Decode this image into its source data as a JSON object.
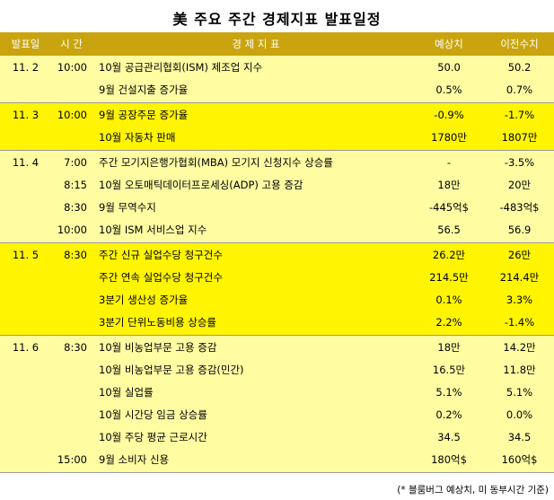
{
  "title": "美 주요 주간 경제지표 발표일정",
  "header": {
    "date": "발표일",
    "time": "시 간",
    "indicator": "경 제 지 표",
    "expected": "예상치",
    "previous": "이전수치"
  },
  "groups": [
    {
      "date": "11. 2",
      "rows": [
        {
          "time": "10:00",
          "indicator": "10월 공급관리협회(ISM) 제조업 지수",
          "expected": "50.0",
          "previous": "50.2"
        },
        {
          "time": "",
          "indicator": "9월 건설지출 증가율",
          "expected": "0.5%",
          "previous": "0.7%"
        }
      ]
    },
    {
      "date": "11. 3",
      "rows": [
        {
          "time": "10:00",
          "indicator": "9월 공장주문 증가율",
          "expected": "-0.9%",
          "previous": "-1.7%"
        },
        {
          "time": "",
          "indicator": "10월 자동차 판매",
          "expected": "1780만",
          "previous": "1807만"
        }
      ]
    },
    {
      "date": "11. 4",
      "rows": [
        {
          "time": "7:00",
          "indicator": "주간 모기지은행가협회(MBA) 모기지 신청지수 상승률",
          "expected": "-",
          "previous": "-3.5%"
        },
        {
          "time": "8:15",
          "indicator": "10월 오토매틱데이터프로세싱(ADP) 고용 증감",
          "expected": "18만",
          "previous": "20만"
        },
        {
          "time": "8:30",
          "indicator": "9월 무역수지",
          "expected": "-445억$",
          "previous": "-483억$"
        },
        {
          "time": "10:00",
          "indicator": "10월 ISM 서비스업 지수",
          "expected": "56.5",
          "previous": "56.9"
        }
      ]
    },
    {
      "date": "11. 5",
      "rows": [
        {
          "time": "8:30",
          "indicator": "주간 신규 실업수당 청구건수",
          "expected": "26.2만",
          "previous": "26만"
        },
        {
          "time": "",
          "indicator": "주간 연속 실업수당 청구건수",
          "expected": "214.5만",
          "previous": "214.4만"
        },
        {
          "time": "",
          "indicator": "3분기 생산성 증가율",
          "expected": "0.1%",
          "previous": "3.3%"
        },
        {
          "time": "",
          "indicator": "3분기 단위노동비용 상승률",
          "expected": "2.2%",
          "previous": "-1.4%"
        }
      ]
    },
    {
      "date": "11. 6",
      "rows": [
        {
          "time": "8:30",
          "indicator": "10월 비농업부문 고용 증감",
          "expected": "18만",
          "previous": "14.2만"
        },
        {
          "time": "",
          "indicator": "10월 비농업부문 고용 증감(민간)",
          "expected": "16.5만",
          "previous": "11.8만"
        },
        {
          "time": "",
          "indicator": "10월 실업률",
          "expected": "5.1%",
          "previous": "5.1%"
        },
        {
          "time": "",
          "indicator": "10월 시간당 임금 상승률",
          "expected": "0.2%",
          "previous": "0.0%"
        },
        {
          "time": "",
          "indicator": "10월 주당 평균 근로시간",
          "expected": "34.5",
          "previous": "34.5"
        },
        {
          "time": "15:00",
          "indicator": "9월 소비자 신용",
          "expected": "180억$",
          "previous": "160억$"
        }
      ]
    }
  ],
  "note": "(* 블룸버그 예상치, 미 동부시간 기준)",
  "colors": {
    "header": "#c9a40e",
    "light_yellow": "#fffca2",
    "bright_yellow": "#fff402"
  }
}
